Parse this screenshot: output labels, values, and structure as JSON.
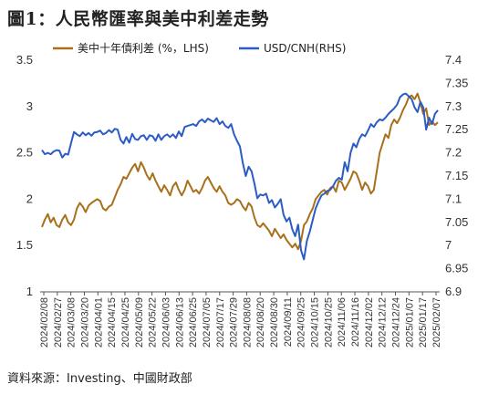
{
  "title": "圖1：人民幣匯率與美中利差走勢",
  "source": "資料來源：Investing、中國財政部",
  "colors": {
    "spread": "#A9701C",
    "usdcnh": "#2B5CC4",
    "axis": "#555555"
  },
  "chart_data": {
    "type": "line",
    "title": "圖1：人民幣匯率與美中利差走勢",
    "xlabel": "",
    "ylabel": "",
    "legend_position": "top",
    "grid": false,
    "x_tick_labels": [
      "2024/02/08",
      "2024/02/27",
      "2024/03/08",
      "2024/03/20",
      "2024/04/01",
      "2024/04/15",
      "2024/04/25",
      "2024/05/09",
      "2024/05/22",
      "2024/06/03",
      "2024/06/13",
      "2024/06/25",
      "2024/07/05",
      "2024/07/17",
      "2024/07/29",
      "2024/08/08",
      "2024/08/20",
      "2024/08/30",
      "2024/09/11",
      "2024/09/25",
      "2024/10/15",
      "2024/10/25",
      "2024/11/06",
      "2024/11/16",
      "2024/12/02",
      "2024/12/12",
      "2024/12/24",
      "2025/01/07",
      "2025/01/17",
      "2025/02/07"
    ],
    "left_axis": {
      "label": "LHS",
      "ylim": [
        1,
        3.5
      ],
      "ticks": [
        "1",
        "1.5",
        "2",
        "2.5",
        "3",
        "3.5"
      ]
    },
    "right_axis": {
      "label": "RHS",
      "ylim": [
        6.9,
        7.4
      ],
      "ticks": [
        "6.9",
        "6.95",
        "7",
        "7.05",
        "7.1",
        "7.15",
        "7.2",
        "7.25",
        "7.3",
        "7.35",
        "7.4"
      ]
    },
    "series": [
      {
        "name": "美中十年債利差 (%，LHS)",
        "axis": "left",
        "values": [
          1.7,
          1.78,
          1.84,
          1.75,
          1.8,
          1.72,
          1.7,
          1.78,
          1.83,
          1.75,
          1.72,
          1.78,
          1.9,
          1.96,
          1.92,
          1.86,
          1.93,
          1.96,
          1.98,
          2.0,
          1.98,
          1.9,
          1.88,
          1.92,
          1.94,
          2.02,
          2.1,
          2.16,
          2.24,
          2.22,
          2.28,
          2.34,
          2.38,
          2.3,
          2.4,
          2.34,
          2.26,
          2.21,
          2.28,
          2.2,
          2.14,
          2.08,
          2.15,
          2.1,
          2.04,
          2.14,
          2.18,
          2.1,
          2.04,
          2.1,
          2.2,
          2.14,
          2.08,
          2.1,
          2.06,
          2.12,
          2.2,
          2.24,
          2.18,
          2.12,
          2.08,
          2.14,
          2.08,
          2.04,
          1.96,
          1.94,
          1.96,
          2.0,
          1.98,
          1.92,
          1.88,
          1.96,
          1.92,
          1.8,
          1.72,
          1.7,
          1.74,
          1.7,
          1.66,
          1.6,
          1.68,
          1.63,
          1.58,
          1.62,
          1.56,
          1.52,
          1.48,
          1.52,
          1.46,
          1.55,
          1.72,
          1.76,
          1.84,
          1.9,
          2.0,
          2.04,
          2.08,
          2.1,
          2.05,
          2.12,
          2.14,
          2.08,
          2.2,
          2.18,
          2.1,
          2.16,
          2.22,
          2.3,
          2.28,
          2.2,
          2.1,
          2.18,
          2.14,
          2.06,
          2.1,
          2.3,
          2.5,
          2.6,
          2.7,
          2.66,
          2.8,
          2.86,
          2.82,
          2.88,
          2.96,
          3.02,
          3.1,
          3.12,
          3.08,
          3.14,
          3.04,
          2.92,
          2.98,
          2.8,
          2.84,
          2.8,
          2.83
        ]
      },
      {
        "name": "USD/CNH(RHS)",
        "axis": "right",
        "values": [
          7.206,
          7.197,
          7.2,
          7.197,
          7.203,
          7.206,
          7.205,
          7.19,
          7.198,
          7.196,
          7.221,
          7.245,
          7.24,
          7.236,
          7.244,
          7.238,
          7.243,
          7.237,
          7.244,
          7.245,
          7.248,
          7.24,
          7.243,
          7.249,
          7.244,
          7.252,
          7.25,
          7.228,
          7.22,
          7.234,
          7.222,
          7.241,
          7.23,
          7.228,
          7.236,
          7.238,
          7.228,
          7.238,
          7.236,
          7.226,
          7.24,
          7.228,
          7.236,
          7.24,
          7.234,
          7.24,
          7.232,
          7.246,
          7.236,
          7.256,
          7.258,
          7.26,
          7.262,
          7.258,
          7.268,
          7.272,
          7.266,
          7.274,
          7.27,
          7.267,
          7.275,
          7.262,
          7.268,
          7.258,
          7.254,
          7.262,
          7.24,
          7.226,
          7.214,
          7.178,
          7.15,
          7.17,
          7.16,
          7.133,
          7.102,
          7.11,
          7.108,
          7.112,
          7.092,
          7.098,
          7.082,
          7.09,
          7.1,
          7.066,
          7.052,
          7.06,
          7.035,
          7.02,
          7.045,
          6.99,
          6.97,
          7.01,
          7.03,
          7.055,
          7.08,
          7.095,
          7.108,
          7.112,
          7.118,
          7.12,
          7.128,
          7.14,
          7.146,
          7.142,
          7.18,
          7.16,
          7.2,
          7.22,
          7.212,
          7.23,
          7.24,
          7.236,
          7.248,
          7.262,
          7.256,
          7.266,
          7.272,
          7.27,
          7.276,
          7.284,
          7.29,
          7.296,
          7.304,
          7.32,
          7.326,
          7.328,
          7.322,
          7.316,
          7.298,
          7.288,
          7.31,
          7.298,
          7.25,
          7.276,
          7.262,
          7.284,
          7.292
        ]
      }
    ]
  }
}
